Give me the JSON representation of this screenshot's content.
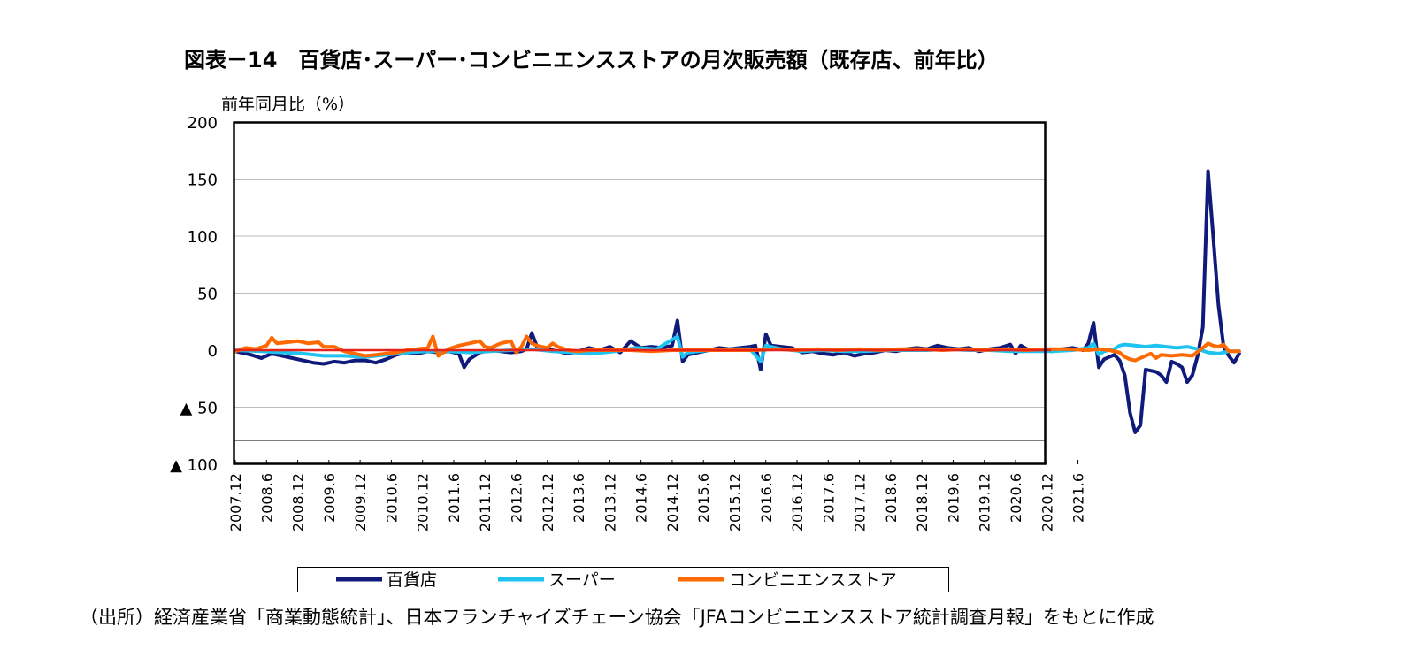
{
  "title": "図表－14　百貨店･スーパー･コンビニエンスストアの月次販売額（既存店、前年比）",
  "source_note": "（出所）経済産業省「商業動態統計」、日本フランチャイズチェーン協会「JFAコンビニエンスストア統計調査月報」をもとに作成",
  "chart_data": {
    "type": "line",
    "ylabel": "前年同月比（%）",
    "ylim": [
      -100,
      200
    ],
    "y_ticks": [
      {
        "value": 200,
        "label": "200"
      },
      {
        "value": 150,
        "label": "150"
      },
      {
        "value": 100,
        "label": "100"
      },
      {
        "value": 50,
        "label": "50"
      },
      {
        "value": 0,
        "label": "0"
      },
      {
        "value": -50,
        "label": "▲ 50"
      },
      {
        "value": -100,
        "label": "▲ 100"
      }
    ],
    "x_ticks": [
      "2007.12",
      "2008.6",
      "2008.12",
      "2009.6",
      "2009.12",
      "2010.6",
      "2010.12",
      "2011.6",
      "2011.12",
      "2012.6",
      "2012.12",
      "2013.6",
      "2013.12",
      "2014.6",
      "2014.12",
      "2015.6",
      "2015.12",
      "2016.6",
      "2016.12",
      "2017.6",
      "2017.12",
      "2018.6",
      "2018.12",
      "2019.6",
      "2019.12",
      "2020.6",
      "2020.12",
      "2021.6"
    ],
    "reference_lines": [
      0,
      -79
    ],
    "grid": true,
    "legend_position": "bottom",
    "series": [
      {
        "name": "百貨店",
        "color": "#0f1a7a",
        "points": [
          [
            0,
            -1
          ],
          [
            3,
            -4
          ],
          [
            5,
            -7
          ],
          [
            7,
            -3
          ],
          [
            9,
            -5
          ],
          [
            11,
            -7
          ],
          [
            13,
            -9
          ],
          [
            15,
            -11
          ],
          [
            17,
            -12
          ],
          [
            19,
            -10
          ],
          [
            21,
            -11
          ],
          [
            23,
            -9
          ],
          [
            25,
            -9
          ],
          [
            27,
            -11
          ],
          [
            29,
            -8
          ],
          [
            31,
            -4
          ],
          [
            33,
            -2
          ],
          [
            35,
            -3
          ],
          [
            37,
            -1
          ],
          [
            39,
            -2
          ],
          [
            41,
            -1
          ],
          [
            43,
            -3
          ],
          [
            44,
            -15
          ],
          [
            45,
            -8
          ],
          [
            47,
            -2
          ],
          [
            49,
            0
          ],
          [
            51,
            -1
          ],
          [
            53,
            -2
          ],
          [
            55,
            -1
          ],
          [
            56,
            1
          ],
          [
            57,
            15
          ],
          [
            58,
            3
          ],
          [
            60,
            1
          ],
          [
            62,
            -1
          ],
          [
            64,
            -3
          ],
          [
            66,
            -1
          ],
          [
            68,
            2
          ],
          [
            70,
            0
          ],
          [
            72,
            3
          ],
          [
            74,
            -2
          ],
          [
            76,
            8
          ],
          [
            78,
            2
          ],
          [
            80,
            3
          ],
          [
            82,
            2
          ],
          [
            84,
            4
          ],
          [
            85,
            26
          ],
          [
            86,
            -10
          ],
          [
            87,
            -4
          ],
          [
            89,
            -2
          ],
          [
            91,
            0
          ],
          [
            93,
            2
          ],
          [
            95,
            1
          ],
          [
            97,
            2
          ],
          [
            99,
            3
          ],
          [
            100,
            4
          ],
          [
            101,
            -17
          ],
          [
            102,
            14
          ],
          [
            103,
            4
          ],
          [
            105,
            3
          ],
          [
            107,
            2
          ],
          [
            109,
            -2
          ],
          [
            111,
            -1
          ],
          [
            113,
            -3
          ],
          [
            115,
            -4
          ],
          [
            117,
            -2
          ],
          [
            119,
            -5
          ],
          [
            121,
            -3
          ],
          [
            123,
            -2
          ],
          [
            125,
            0
          ],
          [
            127,
            -1
          ],
          [
            129,
            1
          ],
          [
            131,
            2
          ],
          [
            133,
            1
          ],
          [
            135,
            4
          ],
          [
            137,
            2
          ],
          [
            139,
            1
          ],
          [
            141,
            2
          ],
          [
            143,
            -1
          ],
          [
            145,
            1
          ],
          [
            147,
            2
          ],
          [
            149,
            5
          ],
          [
            150,
            -3
          ],
          [
            151,
            4
          ],
          [
            153,
            -1
          ],
          [
            155,
            0
          ],
          [
            157,
            -1
          ],
          [
            159,
            1
          ],
          [
            161,
            2
          ],
          [
            163,
            0
          ],
          [
            164,
            6
          ],
          [
            165,
            24
          ],
          [
            166,
            -15
          ],
          [
            167,
            -8
          ],
          [
            169,
            -4
          ],
          [
            170,
            -9
          ],
          [
            171,
            -22
          ],
          [
            172,
            -55
          ],
          [
            173,
            -72
          ],
          [
            174,
            -66
          ],
          [
            175,
            -17
          ],
          [
            176,
            -18
          ],
          [
            177,
            -19
          ],
          [
            178,
            -22
          ],
          [
            179,
            -28
          ],
          [
            180,
            -10
          ],
          [
            181,
            -12
          ],
          [
            182,
            -15
          ],
          [
            183,
            -28
          ],
          [
            184,
            -22
          ],
          [
            185,
            -5
          ],
          [
            186,
            20
          ],
          [
            187,
            157
          ],
          [
            188,
            100
          ],
          [
            189,
            40
          ],
          [
            190,
            3
          ],
          [
            191,
            -5
          ],
          [
            192,
            -11
          ],
          [
            193,
            -3
          ]
        ]
      },
      {
        "name": "スーパー",
        "color": "#1ec3f0",
        "points": [
          [
            0,
            0
          ],
          [
            5,
            -1
          ],
          [
            9,
            -2
          ],
          [
            13,
            -3
          ],
          [
            17,
            -5
          ],
          [
            21,
            -5
          ],
          [
            25,
            -6
          ],
          [
            29,
            -4
          ],
          [
            33,
            -2
          ],
          [
            37,
            -1
          ],
          [
            41,
            -1
          ],
          [
            45,
            -2
          ],
          [
            49,
            -1
          ],
          [
            53,
            0
          ],
          [
            57,
            1
          ],
          [
            61,
            -1
          ],
          [
            65,
            -2
          ],
          [
            69,
            -3
          ],
          [
            73,
            -1
          ],
          [
            77,
            2
          ],
          [
            81,
            1
          ],
          [
            85,
            12
          ],
          [
            86,
            -6
          ],
          [
            87,
            -2
          ],
          [
            91,
            0
          ],
          [
            95,
            1
          ],
          [
            99,
            1
          ],
          [
            101,
            -10
          ],
          [
            102,
            4
          ],
          [
            105,
            1
          ],
          [
            109,
            -1
          ],
          [
            113,
            0
          ],
          [
            117,
            -1
          ],
          [
            121,
            -1
          ],
          [
            125,
            0
          ],
          [
            129,
            0
          ],
          [
            133,
            0
          ],
          [
            137,
            1
          ],
          [
            141,
            0
          ],
          [
            145,
            0
          ],
          [
            149,
            -1
          ],
          [
            153,
            -1
          ],
          [
            157,
            -1
          ],
          [
            161,
            0
          ],
          [
            164,
            2
          ],
          [
            165,
            6
          ],
          [
            166,
            -4
          ],
          [
            167,
            -1
          ],
          [
            169,
            1
          ],
          [
            170,
            4
          ],
          [
            171,
            5
          ],
          [
            173,
            4
          ],
          [
            175,
            3
          ],
          [
            177,
            4
          ],
          [
            179,
            3
          ],
          [
            181,
            2
          ],
          [
            183,
            3
          ],
          [
            185,
            1
          ],
          [
            187,
            -2
          ],
          [
            189,
            -3
          ],
          [
            191,
            -1
          ],
          [
            193,
            -1
          ]
        ]
      },
      {
        "name": "コンビニエンスストア",
        "color": "#ff6a00",
        "points": [
          [
            0,
            -1
          ],
          [
            2,
            2
          ],
          [
            4,
            1
          ],
          [
            6,
            4
          ],
          [
            7,
            11
          ],
          [
            8,
            6
          ],
          [
            10,
            7
          ],
          [
            12,
            8
          ],
          [
            14,
            6
          ],
          [
            16,
            7
          ],
          [
            17,
            3
          ],
          [
            19,
            3
          ],
          [
            21,
            -1
          ],
          [
            23,
            -3
          ],
          [
            25,
            -5
          ],
          [
            27,
            -4
          ],
          [
            29,
            -3
          ],
          [
            31,
            -2
          ],
          [
            33,
            0
          ],
          [
            35,
            1
          ],
          [
            37,
            2
          ],
          [
            38,
            12
          ],
          [
            39,
            -5
          ],
          [
            41,
            1
          ],
          [
            43,
            4
          ],
          [
            45,
            6
          ],
          [
            47,
            8
          ],
          [
            48,
            3
          ],
          [
            49,
            2
          ],
          [
            51,
            6
          ],
          [
            53,
            8
          ],
          [
            54,
            -2
          ],
          [
            55,
            3
          ],
          [
            56,
            12
          ],
          [
            57,
            6
          ],
          [
            58,
            4
          ],
          [
            60,
            2
          ],
          [
            61,
            6
          ],
          [
            62,
            3
          ],
          [
            64,
            0
          ],
          [
            66,
            -1
          ],
          [
            68,
            0
          ],
          [
            72,
            0
          ],
          [
            76,
            0
          ],
          [
            80,
            -1
          ],
          [
            84,
            0
          ],
          [
            88,
            0
          ],
          [
            92,
            0
          ],
          [
            96,
            0
          ],
          [
            100,
            0
          ],
          [
            104,
            1
          ],
          [
            108,
            0
          ],
          [
            112,
            1
          ],
          [
            116,
            0
          ],
          [
            120,
            1
          ],
          [
            124,
            0
          ],
          [
            128,
            1
          ],
          [
            132,
            1
          ],
          [
            136,
            0
          ],
          [
            140,
            1
          ],
          [
            144,
            0
          ],
          [
            148,
            1
          ],
          [
            152,
            0
          ],
          [
            156,
            1
          ],
          [
            160,
            1
          ],
          [
            164,
            0
          ],
          [
            166,
            1
          ],
          [
            168,
            0
          ],
          [
            170,
            -2
          ],
          [
            171,
            -6
          ],
          [
            172,
            -8
          ],
          [
            173,
            -9
          ],
          [
            174,
            -7
          ],
          [
            175,
            -5
          ],
          [
            176,
            -3
          ],
          [
            177,
            -7
          ],
          [
            178,
            -4
          ],
          [
            180,
            -5
          ],
          [
            182,
            -4
          ],
          [
            184,
            -5
          ],
          [
            186,
            2
          ],
          [
            187,
            6
          ],
          [
            188,
            4
          ],
          [
            189,
            3
          ],
          [
            190,
            5
          ],
          [
            191,
            -1
          ],
          [
            193,
            -1
          ]
        ]
      }
    ]
  }
}
